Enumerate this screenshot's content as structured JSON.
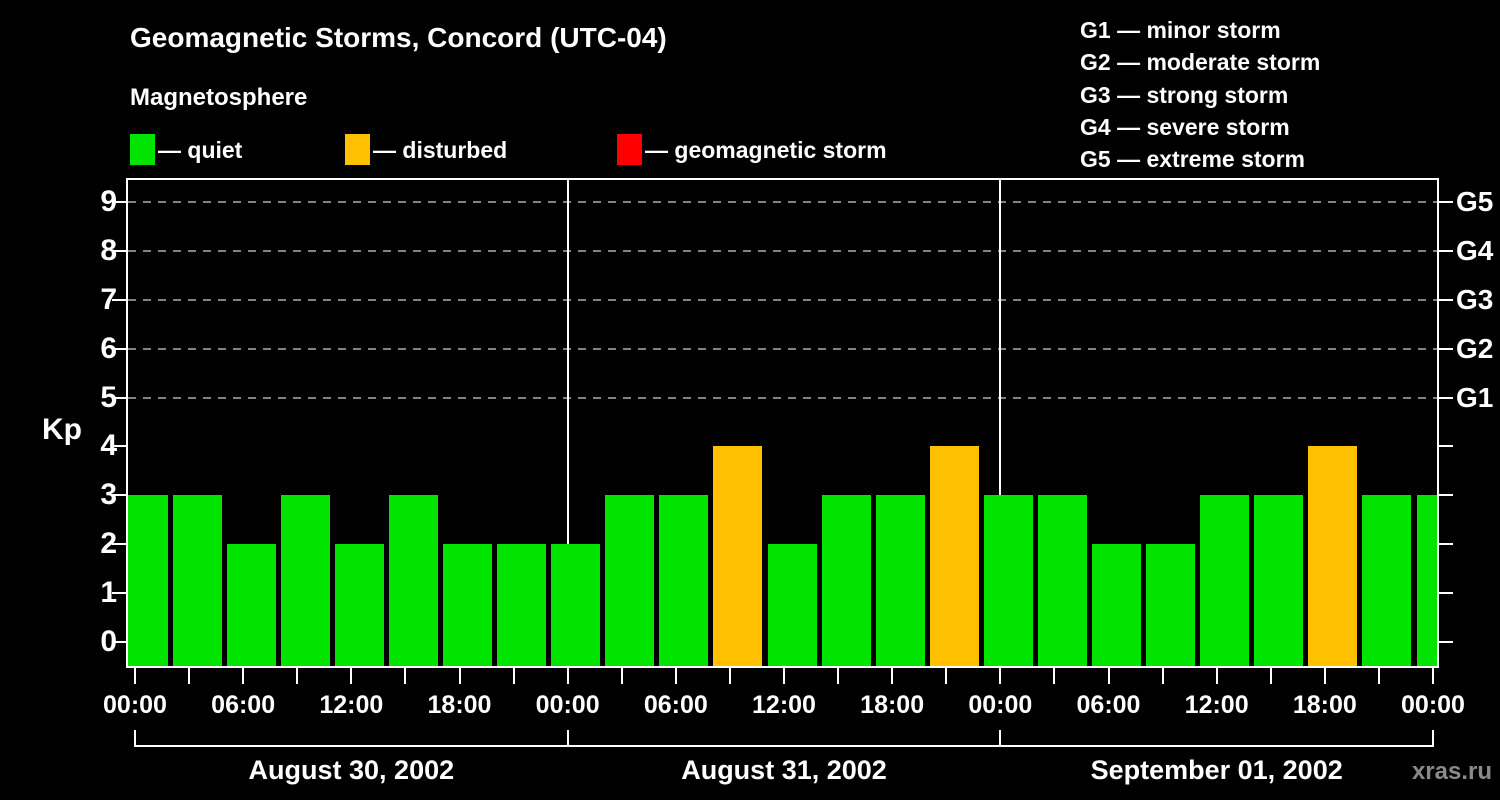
{
  "title": "Geomagnetic Storms, Concord (UTC-04)",
  "magnetosphere": {
    "heading": "Magnetosphere",
    "items": [
      {
        "name": "quiet",
        "label": "— quiet",
        "color": "#00e400"
      },
      {
        "name": "disturbed",
        "label": "— disturbed",
        "color": "#ffc000"
      },
      {
        "name": "storm",
        "label": "— geomagnetic storm",
        "color": "#ff0000"
      }
    ]
  },
  "storm_scale_legend": [
    "G1 — minor storm",
    "G2 — moderate storm",
    "G3 — strong storm",
    "G4 — severe storm",
    "G5 — extreme storm"
  ],
  "watermark": "xras.ru",
  "chart_data": {
    "type": "bar",
    "title": "Geomagnetic Storms, Concord (UTC-04)",
    "ylabel": "Kp",
    "ylim": [
      0,
      9
    ],
    "yticks": [
      0,
      1,
      2,
      3,
      4,
      5,
      6,
      7,
      8,
      9
    ],
    "grid_levels_dashed": [
      5,
      6,
      7,
      8,
      9
    ],
    "right_axis": [
      {
        "label": "G1",
        "kp": 5
      },
      {
        "label": "G2",
        "kp": 6
      },
      {
        "label": "G3",
        "kp": 7
      },
      {
        "label": "G4",
        "kp": 8
      },
      {
        "label": "G5",
        "kp": 9
      }
    ],
    "x_time_labels_per_day": [
      "00:00",
      "06:00",
      "12:00",
      "18:00"
    ],
    "bar_interval_hours": 3,
    "days": [
      {
        "date": "August 30, 2002",
        "kp_values": [
          3,
          3,
          2,
          3,
          2,
          3,
          2,
          2
        ]
      },
      {
        "date": "August 31, 2002",
        "kp_values": [
          2,
          3,
          3,
          4,
          2,
          3,
          3,
          4
        ]
      },
      {
        "date": "September 01, 2002",
        "kp_values": [
          3,
          3,
          2,
          2,
          3,
          3,
          4,
          3
        ]
      }
    ],
    "next_interval_partial_value": 3,
    "colors": {
      "quiet": "#00e400",
      "disturbed": "#ffc000",
      "storm": "#ff0000"
    },
    "color_rule": {
      "quiet_max": 3,
      "disturbed_max": 4
    },
    "grid_color": "#828282"
  }
}
